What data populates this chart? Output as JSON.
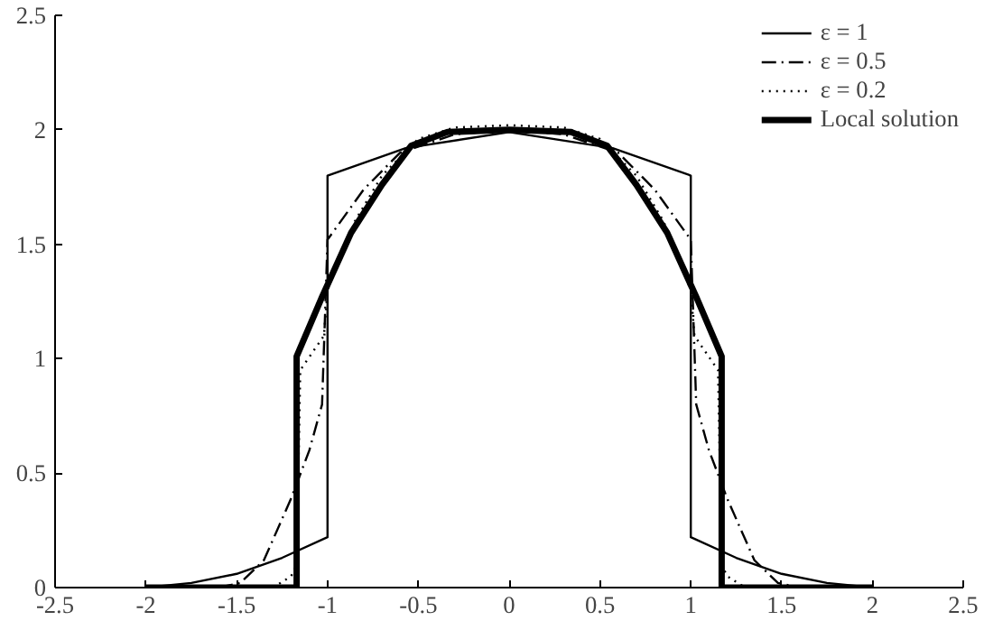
{
  "chart_data": {
    "type": "line",
    "xlim": [
      -2.5,
      2.5
    ],
    "ylim": [
      0,
      2.5
    ],
    "xticks": [
      -2.5,
      -2,
      -1.5,
      -1,
      -0.5,
      0,
      0.5,
      1,
      1.5,
      2,
      2.5
    ],
    "yticks": [
      0,
      0.5,
      1,
      1.5,
      2,
      2.5
    ],
    "grid": false,
    "legend": "top right",
    "marker": "none",
    "series": [
      {
        "name": "ε = 1",
        "color": "#000000",
        "line_style": "solid",
        "x": [
          -2,
          -1.75,
          -1.5,
          -1.25,
          -1,
          -1,
          -0.57,
          0,
          0.57,
          1,
          1,
          1.25,
          1.5,
          1.75,
          2
        ],
        "values": [
          0,
          0.02,
          0.06,
          0.13,
          0.22,
          1.8,
          1.92,
          1.99,
          1.92,
          1.8,
          0.22,
          0.13,
          0.06,
          0.02,
          0
        ]
      },
      {
        "name": "ε = 0.5",
        "color": "#000000",
        "line_style": "dashdot",
        "x": [
          -1.6,
          -1.48,
          -1.35,
          -1.2,
          -1.1,
          -1.03,
          -1.0,
          -0.8,
          -0.6,
          -0.3,
          0,
          0.3,
          0.6,
          0.8,
          1.0,
          1.03,
          1.1,
          1.2,
          1.35,
          1.48,
          1.6
        ],
        "values": [
          0,
          0.02,
          0.12,
          0.39,
          0.6,
          0.8,
          1.52,
          1.74,
          1.9,
          1.98,
          2.0,
          1.98,
          1.9,
          1.74,
          1.52,
          0.8,
          0.6,
          0.39,
          0.12,
          0.02,
          0
        ]
      },
      {
        "name": "ε = 0.2",
        "color": "#000000",
        "line_style": "dotted",
        "x": [
          -1.3,
          -1.2,
          -1.17,
          -1.15,
          -1.02,
          -1.0,
          -0.85,
          -0.7,
          -0.5,
          -0.3,
          0,
          0.3,
          0.5,
          0.7,
          0.85,
          1.0,
          1.02,
          1.15,
          1.17,
          1.2,
          1.3
        ],
        "values": [
          0,
          0.05,
          0.1,
          0.95,
          1.1,
          1.3,
          1.6,
          1.8,
          1.96,
          2.01,
          2.02,
          2.01,
          1.96,
          1.8,
          1.6,
          1.3,
          1.1,
          0.95,
          0.1,
          0.05,
          0
        ]
      },
      {
        "name": "Local solution",
        "color": "#000000",
        "line_style": "solid",
        "x": [
          -2,
          -1.17,
          -1.17,
          -1.03,
          -0.87,
          -0.7,
          -0.54,
          -0.34,
          0,
          0.34,
          0.54,
          0.7,
          0.87,
          1.03,
          1.17,
          1.17,
          2
        ],
        "values": [
          0,
          0,
          1.01,
          1.27,
          1.55,
          1.76,
          1.93,
          1.99,
          2.0,
          1.99,
          1.93,
          1.76,
          1.55,
          1.27,
          1.01,
          0,
          0
        ]
      }
    ]
  }
}
